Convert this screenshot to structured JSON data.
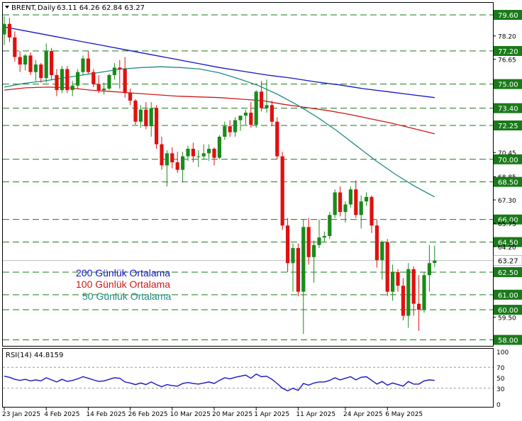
{
  "header": {
    "symbol": "BRENT",
    "timeframe": "Daily",
    "ohlc": "63.11 64.26 62.84 63.27"
  },
  "chart_data": {
    "type": "candlestick",
    "price_axis": {
      "range": [
        57.6,
        80.4
      ],
      "tick_labels": [
        "79.60",
        "78.20",
        "77.20",
        "76.65",
        "75.00",
        "73.40",
        "72.25",
        "70.45",
        "70.00",
        "68.85",
        "68.50",
        "67.30",
        "66.00",
        "65.75",
        "64.50",
        "64.20",
        "63.27",
        "62.50",
        "61.00",
        "60.00",
        "59.50",
        "58.00"
      ],
      "support_resistance_levels": [
        79.6,
        77.2,
        75.0,
        73.4,
        72.25,
        70.0,
        68.5,
        66.0,
        64.5,
        62.5,
        61.0,
        60.0,
        58.0
      ],
      "highlighted_levels": [
        "79.60",
        "77.20",
        "75.00",
        "73.40",
        "72.25",
        "70.00",
        "68.50",
        "66.00",
        "64.50",
        "62.50",
        "61.00",
        "60.00",
        "58.00"
      ],
      "last_price": "63.27",
      "last_price_value": 63.27
    },
    "date_labels": [
      "23 Jan 2025",
      "4 Feb 2025",
      "14 Feb 2025",
      "26 Feb 2025",
      "10 Mar 2025",
      "20 Mar 2025",
      "1 Apr 2025",
      "11 Apr 2025",
      "24 Apr 2025",
      "6 May 2025"
    ],
    "date_label_index": [
      0,
      8,
      16,
      24,
      32,
      40,
      48,
      56,
      65,
      73
    ],
    "candles": [
      [
        78.3,
        79.5,
        77.6,
        79.0
      ],
      [
        79.0,
        79.4,
        77.8,
        78.1
      ],
      [
        78.1,
        78.5,
        76.5,
        76.8
      ],
      [
        76.8,
        77.2,
        75.8,
        76.3
      ],
      [
        76.3,
        77.0,
        75.9,
        76.9
      ],
      [
        76.9,
        77.1,
        75.6,
        75.8
      ],
      [
        75.8,
        76.6,
        75.2,
        76.3
      ],
      [
        76.3,
        76.4,
        75.1,
        75.4
      ],
      [
        75.4,
        77.7,
        75.1,
        77.2
      ],
      [
        77.2,
        77.4,
        75.3,
        75.6
      ],
      [
        75.6,
        76.0,
        74.2,
        74.6
      ],
      [
        74.6,
        76.2,
        74.4,
        76.0
      ],
      [
        76.0,
        76.2,
        74.4,
        74.6
      ],
      [
        74.6,
        75.2,
        74.2,
        74.9
      ],
      [
        74.9,
        76.0,
        74.7,
        75.8
      ],
      [
        75.8,
        76.9,
        75.6,
        76.7
      ],
      [
        76.7,
        77.2,
        75.7,
        75.8
      ],
      [
        75.8,
        76.0,
        74.8,
        75.0
      ],
      [
        75.0,
        75.6,
        74.4,
        74.6
      ],
      [
        74.6,
        75.1,
        74.3,
        74.7
      ],
      [
        74.7,
        75.7,
        74.6,
        75.6
      ],
      [
        75.6,
        76.4,
        75.3,
        76.1
      ],
      [
        76.1,
        76.6,
        74.7,
        76.0
      ],
      [
        76.0,
        76.8,
        74.1,
        74.4
      ],
      [
        74.4,
        74.7,
        73.6,
        73.9
      ],
      [
        73.9,
        74.0,
        72.3,
        72.5
      ],
      [
        72.5,
        73.6,
        72.1,
        73.3
      ],
      [
        73.3,
        73.8,
        72.0,
        72.2
      ],
      [
        72.2,
        73.8,
        71.5,
        73.4
      ],
      [
        73.4,
        73.6,
        70.7,
        71.0
      ],
      [
        71.0,
        71.5,
        69.3,
        69.6
      ],
      [
        69.6,
        70.6,
        68.2,
        70.4
      ],
      [
        70.4,
        70.8,
        69.4,
        69.8
      ],
      [
        69.8,
        70.5,
        69.1,
        69.3
      ],
      [
        69.3,
        70.5,
        68.5,
        70.2
      ],
      [
        70.2,
        70.9,
        69.9,
        70.7
      ],
      [
        70.7,
        71.1,
        69.8,
        70.2
      ],
      [
        70.2,
        70.6,
        69.5,
        70.2
      ],
      [
        70.2,
        71.0,
        70.0,
        70.4
      ],
      [
        70.4,
        71.0,
        69.9,
        70.7
      ],
      [
        70.7,
        70.8,
        69.6,
        70.1
      ],
      [
        70.1,
        71.6,
        70.0,
        71.5
      ],
      [
        71.5,
        72.5,
        71.3,
        72.2
      ],
      [
        72.2,
        72.6,
        71.5,
        71.8
      ],
      [
        71.8,
        72.8,
        71.5,
        72.6
      ],
      [
        72.6,
        72.9,
        71.9,
        72.9
      ],
      [
        72.9,
        73.3,
        72.3,
        73.1
      ],
      [
        73.1,
        73.8,
        72.1,
        72.3
      ],
      [
        72.3,
        74.6,
        72.1,
        74.5
      ],
      [
        74.5,
        75.2,
        73.2,
        73.4
      ],
      [
        73.4,
        75.3,
        73.1,
        73.6
      ],
      [
        73.6,
        73.9,
        72.2,
        72.5
      ],
      [
        72.5,
        72.8,
        70.0,
        70.2
      ],
      [
        70.2,
        70.5,
        65.3,
        65.6
      ],
      [
        65.6,
        66.1,
        62.5,
        63.1
      ],
      [
        63.1,
        64.4,
        61.2,
        64.1
      ],
      [
        64.1,
        64.4,
        60.9,
        61.2
      ],
      [
        61.2,
        66.0,
        58.4,
        65.5
      ],
      [
        65.5,
        66.1,
        63.0,
        63.5
      ],
      [
        63.5,
        64.6,
        61.8,
        64.3
      ],
      [
        64.3,
        66.0,
        64.1,
        64.8
      ],
      [
        64.8,
        65.2,
        64.5,
        64.9
      ],
      [
        64.9,
        66.5,
        64.7,
        66.3
      ],
      [
        66.3,
        68.0,
        66.1,
        67.8
      ],
      [
        67.8,
        68.2,
        66.2,
        66.5
      ],
      [
        66.5,
        67.2,
        65.8,
        67.0
      ],
      [
        67.0,
        68.2,
        66.8,
        68.0
      ],
      [
        68.0,
        68.6,
        66.1,
        66.3
      ],
      [
        66.3,
        67.6,
        65.4,
        67.2
      ],
      [
        67.2,
        67.8,
        66.9,
        67.5
      ],
      [
        67.5,
        67.6,
        65.1,
        65.6
      ],
      [
        65.6,
        66.0,
        62.8,
        63.3
      ],
      [
        63.3,
        64.6,
        62.0,
        64.5
      ],
      [
        64.5,
        64.7,
        60.9,
        61.2
      ],
      [
        61.2,
        63.0,
        60.6,
        62.5
      ],
      [
        62.5,
        62.7,
        61.2,
        61.6
      ],
      [
        61.6,
        62.1,
        59.3,
        59.6
      ],
      [
        59.6,
        63.1,
        58.8,
        62.7
      ],
      [
        62.7,
        62.9,
        59.6,
        60.4
      ],
      [
        60.4,
        62.3,
        58.6,
        60.0
      ],
      [
        60.0,
        62.5,
        59.8,
        62.3
      ],
      [
        62.3,
        64.3,
        61.2,
        63.1
      ],
      [
        63.11,
        64.26,
        62.84,
        63.27
      ]
    ],
    "moving_averages": [
      {
        "name": "200 Günlük Ortalama",
        "color": "#1515c8",
        "values": [
          78.8,
          78.5,
          78.2,
          77.9,
          77.6,
          77.3,
          77.0,
          76.7,
          76.4,
          76.1,
          75.85,
          75.6,
          75.4,
          75.15,
          74.95,
          74.7,
          74.5,
          74.3,
          74.1
        ]
      },
      {
        "name": "100 Günlük Ortalama",
        "color": "#d01818",
        "values": [
          74.6,
          74.75,
          74.8,
          74.75,
          74.6,
          74.5,
          74.4,
          74.3,
          74.2,
          74.15,
          74.1,
          74.0,
          73.9,
          73.65,
          73.45,
          73.25,
          73.0,
          72.7,
          72.4,
          72.05,
          71.7
        ]
      },
      {
        "name": "50 Günlük Ortalama",
        "color": "#1f8c82",
        "values": [
          74.8,
          75.05,
          75.2,
          75.4,
          75.6,
          75.8,
          76.0,
          76.1,
          76.15,
          76.1,
          76.0,
          75.75,
          75.35,
          74.9,
          74.3,
          73.6,
          72.8,
          71.9,
          70.9,
          69.9,
          69.0,
          68.2,
          67.5
        ]
      }
    ],
    "legend": [
      {
        "label": "200 Günlük Ortalama",
        "color": "#1515c8"
      },
      {
        "label": "100 Günlük Ortalama",
        "color": "#d01818"
      },
      {
        "label": "50 Günlük Ortalama",
        "color": "#1f8c82"
      }
    ],
    "rsi": {
      "label": "RSI(14) 44.8159",
      "period": 14,
      "value": 44.8159,
      "range": [
        0,
        100
      ],
      "levels": [
        70,
        30
      ],
      "tick_labels": [
        "100",
        "70",
        "50",
        "30",
        "0"
      ],
      "values": [
        53,
        51,
        47,
        45,
        47,
        44,
        46,
        44,
        50,
        46,
        42,
        47,
        43,
        45,
        48,
        52,
        49,
        46,
        43,
        44,
        47,
        50,
        49,
        42,
        40,
        37,
        40,
        37,
        42,
        37,
        33,
        37,
        35,
        34,
        39,
        41,
        39,
        38,
        40,
        42,
        39,
        45,
        50,
        48,
        51,
        53,
        55,
        49,
        57,
        52,
        53,
        47,
        39,
        30,
        25,
        30,
        26,
        39,
        36,
        40,
        42,
        42,
        45,
        50,
        46,
        49,
        52,
        46,
        51,
        52,
        45,
        38,
        43,
        36,
        40,
        37,
        34,
        43,
        38,
        38,
        44,
        46,
        45
      ]
    }
  }
}
